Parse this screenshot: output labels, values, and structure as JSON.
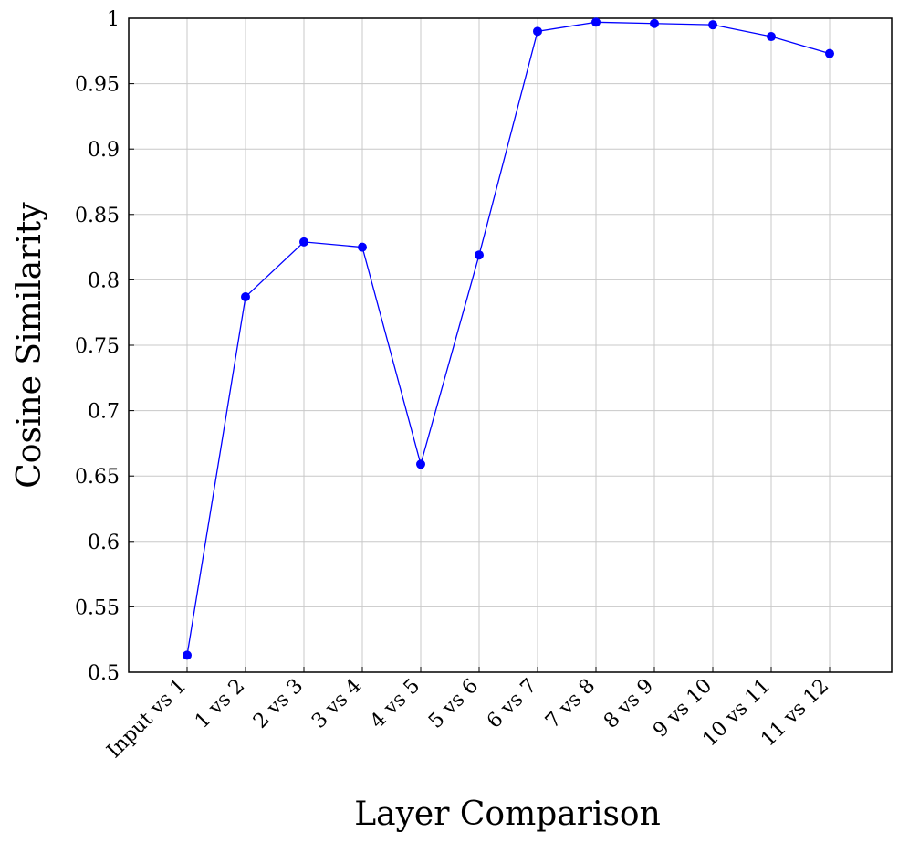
{
  "chart_data": {
    "type": "line",
    "title": "",
    "xlabel": "Layer Comparison",
    "ylabel": "Cosine Similarity",
    "categories": [
      "Input vs 1",
      "1 vs 2",
      "2 vs 3",
      "3 vs 4",
      "4 vs 5",
      "5 vs 6",
      "6 vs 7",
      "7 vs 8",
      "8 vs 9",
      "9 vs 10",
      "10 vs 11",
      "11 vs 12"
    ],
    "series": [
      {
        "color": "#0000ff",
        "values": [
          0.513,
          0.787,
          0.829,
          0.825,
          0.659,
          0.819,
          0.99,
          0.997,
          0.996,
          0.995,
          0.986,
          0.973
        ]
      }
    ],
    "ylim": [
      0.5,
      1.0
    ],
    "yticks": [
      "0.5",
      "0.55",
      "0.6",
      "0.65",
      "0.7",
      "0.75",
      "0.8",
      "0.85",
      "0.9",
      "0.95",
      "1"
    ],
    "grid": true,
    "legend": "none"
  }
}
